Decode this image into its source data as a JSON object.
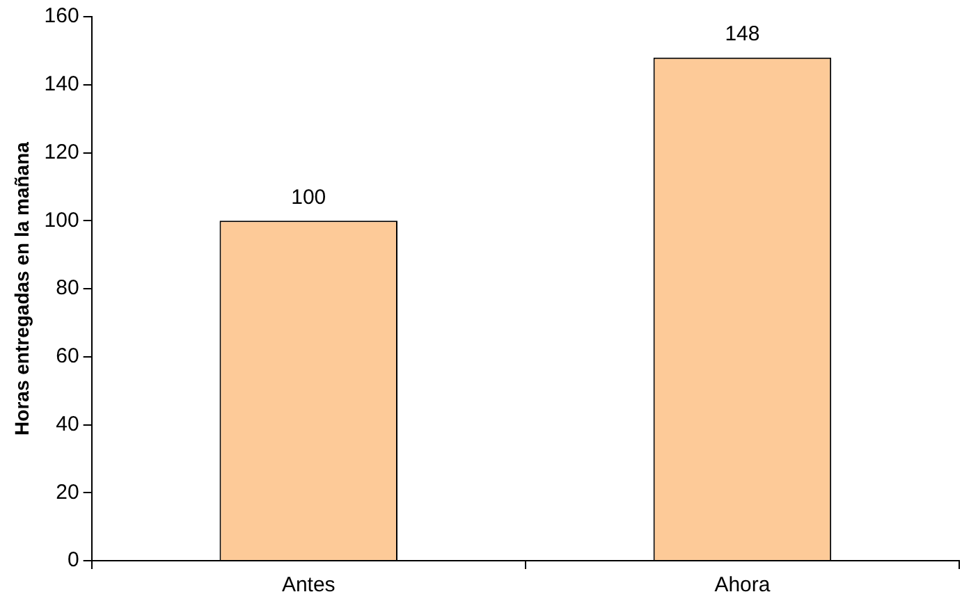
{
  "chart_data": {
    "type": "bar",
    "ylabel": "Horas entregadas en la mañana",
    "categories": [
      "Antes",
      "Ahora"
    ],
    "values": [
      100,
      148
    ],
    "color": "#fdca98",
    "ylim": [
      0,
      160
    ],
    "yticks": [
      0,
      20,
      40,
      60,
      80,
      100,
      120,
      140,
      160
    ],
    "grid": false,
    "legend": false,
    "data_labels": true
  }
}
